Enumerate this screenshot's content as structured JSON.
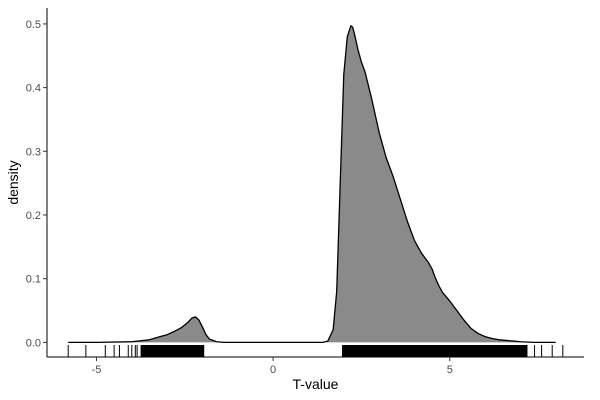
{
  "chart_data": {
    "type": "area",
    "title": "",
    "xlabel": "T-value",
    "ylabel": "density",
    "xlim": [
      -6.4,
      8.8
    ],
    "ylim": [
      -0.023,
      0.525
    ],
    "xticks": [
      -5,
      0,
      5
    ],
    "xtick_labels": [
      "-5",
      "0",
      "5"
    ],
    "yticks": [
      0.0,
      0.1,
      0.2,
      0.3,
      0.4,
      0.5
    ],
    "ytick_labels": [
      "0.0",
      "0.1",
      "0.2",
      "0.3",
      "0.4",
      "0.5"
    ],
    "grid": false,
    "legend": "none",
    "fill_color": "#8a8a8a",
    "line_color": "#000000",
    "density": {
      "x": [
        -5.8,
        -5.0,
        -4.0,
        -3.5,
        -3.2,
        -3.0,
        -2.8,
        -2.6,
        -2.4,
        -2.3,
        -2.2,
        -2.1,
        -2.0,
        -1.9,
        -1.8,
        -1.6,
        -1.4,
        -1.0,
        0.0,
        1.0,
        1.4,
        1.55,
        1.7,
        1.8,
        1.9,
        2.0,
        2.1,
        2.2,
        2.25,
        2.3,
        2.4,
        2.5,
        2.6,
        2.8,
        3.0,
        3.2,
        3.4,
        3.6,
        3.8,
        4.0,
        4.2,
        4.4,
        4.5,
        4.6,
        4.7,
        4.8,
        5.0,
        5.2,
        5.4,
        5.6,
        5.8,
        6.0,
        6.2,
        6.4,
        6.6,
        6.8,
        7.0,
        7.4,
        8.0
      ],
      "y": [
        0.0,
        0.0,
        0.001,
        0.004,
        0.009,
        0.012,
        0.017,
        0.023,
        0.032,
        0.038,
        0.04,
        0.035,
        0.024,
        0.012,
        0.005,
        0.001,
        0.0,
        0.0,
        0.0,
        0.0,
        0.0,
        0.002,
        0.02,
        0.08,
        0.25,
        0.42,
        0.48,
        0.497,
        0.495,
        0.485,
        0.46,
        0.44,
        0.425,
        0.38,
        0.33,
        0.29,
        0.26,
        0.225,
        0.19,
        0.16,
        0.14,
        0.125,
        0.115,
        0.1,
        0.088,
        0.078,
        0.065,
        0.05,
        0.035,
        0.022,
        0.014,
        0.009,
        0.006,
        0.004,
        0.003,
        0.002,
        0.001,
        0.0,
        0.0
      ]
    },
    "rug": {
      "dense_ranges": [
        [
          -3.75,
          -1.95
        ],
        [
          1.95,
          7.2
        ]
      ],
      "sparse_x": [
        -5.8,
        -5.3,
        -4.75,
        -4.5,
        -4.35,
        -4.1,
        -4.0,
        -3.9,
        -3.85,
        7.4,
        7.6,
        7.9,
        8.2
      ]
    }
  }
}
